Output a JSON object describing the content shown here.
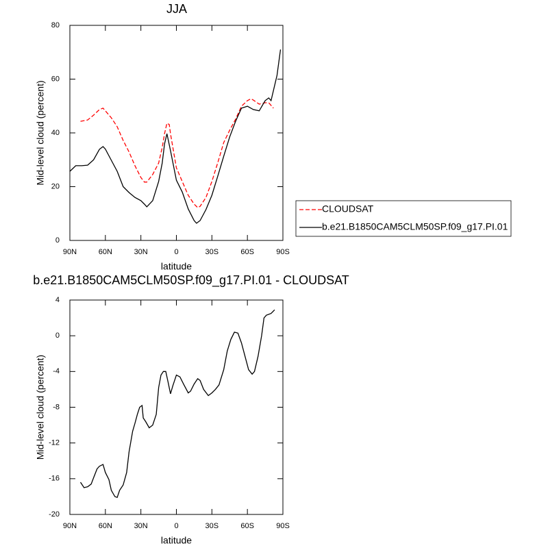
{
  "chart_data": [
    {
      "type": "line",
      "title": "JJA",
      "xlabel": "latitude",
      "ylabel": "Mid-level cloud (percent)",
      "xlim": [
        90,
        -90
      ],
      "xticks": [
        {
          "value": 90,
          "label": "90N"
        },
        {
          "value": 60,
          "label": "60N"
        },
        {
          "value": 30,
          "label": "30N"
        },
        0,
        {
          "value": -30,
          "label": "30S"
        },
        {
          "value": -60,
          "label": "60S"
        },
        {
          "value": -90,
          "label": "90S"
        }
      ],
      "ylim": [
        0,
        80
      ],
      "yticks": [
        0,
        20,
        40,
        60,
        80
      ],
      "legend": "right",
      "series": [
        {
          "name": "CLOUDSAT",
          "color": "#ff0000",
          "linestyle": "dashed",
          "x": [
            81,
            75,
            70,
            65,
            62,
            60,
            55,
            50,
            45,
            40,
            35,
            30,
            27,
            25,
            20,
            15,
            12,
            10,
            8,
            6,
            5,
            0,
            -5,
            -10,
            -15,
            -18,
            -20,
            -25,
            -30,
            -35,
            -40,
            -45,
            -50,
            -55,
            -60,
            -63,
            -65,
            -70,
            -75,
            -78,
            -82
          ],
          "values": [
            44.3,
            44.8,
            46.6,
            48.7,
            49.2,
            48.2,
            45.6,
            42.3,
            37.2,
            32.9,
            27.8,
            23.4,
            21.7,
            21.7,
            24.5,
            28.8,
            34.6,
            39.7,
            43.6,
            43.1,
            39.7,
            27,
            21.9,
            16.8,
            13.5,
            12.2,
            12.7,
            16,
            21.9,
            29,
            36.4,
            41,
            45.1,
            49.9,
            52,
            52.7,
            52.2,
            50.7,
            51.2,
            51.2,
            49.2
          ]
        },
        {
          "name": "b.e21.B1850CAM5CLM50SP.f09_g17.PI.01",
          "color": "#000000",
          "linestyle": "solid",
          "x": [
            90,
            85,
            80,
            75,
            70,
            65,
            62,
            60,
            55,
            50,
            45,
            40,
            35,
            30,
            27,
            25,
            20,
            15,
            12,
            10,
            8,
            5,
            0,
            -5,
            -10,
            -15,
            -17,
            -20,
            -25,
            -30,
            -35,
            -40,
            -45,
            -50,
            -55,
            -60,
            -65,
            -70,
            -75,
            -78,
            -80,
            -85,
            -88
          ],
          "values": [
            25.7,
            27.8,
            27.8,
            28,
            30,
            33.9,
            34.9,
            34,
            29.8,
            25.7,
            20,
            17.8,
            16,
            14.8,
            13.5,
            12.5,
            14.8,
            21.9,
            28.8,
            35.9,
            39.7,
            33.4,
            22.4,
            18,
            11.7,
            7.4,
            6.4,
            7.4,
            11.5,
            16.8,
            24,
            31.3,
            38.5,
            44.3,
            49.2,
            49.9,
            48.7,
            48.2,
            52,
            53,
            52,
            61.4,
            71
          ]
        }
      ]
    },
    {
      "type": "line",
      "title": "b.e21.B1850CAM5CLM50SP.f09_g17.PI.01 - CLOUDSAT",
      "xlabel": "latitude",
      "ylabel": "Mid-level cloud (percent)",
      "xlim": [
        90,
        -90
      ],
      "xticks": [
        {
          "value": 90,
          "label": "90N"
        },
        {
          "value": 60,
          "label": "60N"
        },
        {
          "value": 30,
          "label": "30N"
        },
        0,
        {
          "value": -30,
          "label": "30S"
        },
        {
          "value": -60,
          "label": "60S"
        },
        {
          "value": -90,
          "label": "90S"
        }
      ],
      "ylim": [
        -20,
        4
      ],
      "yticks": [
        -20,
        -16,
        -12,
        -8,
        -4,
        0,
        4
      ],
      "series": [
        {
          "color": "#000000",
          "linestyle": "solid",
          "x": [
            81,
            78,
            75,
            72,
            70,
            67,
            65,
            62,
            60,
            57,
            55,
            52,
            50,
            48,
            45,
            42,
            40,
            37,
            35,
            33,
            31,
            29,
            28,
            26,
            23,
            20,
            17,
            15,
            13,
            11,
            9,
            7,
            5,
            3,
            0,
            -3,
            -6,
            -10,
            -12,
            -15,
            -18,
            -20,
            -23,
            -27,
            -30,
            -33,
            -36,
            -40,
            -43,
            -46,
            -49,
            -52,
            -55,
            -58,
            -61,
            -64,
            -66,
            -69,
            -72,
            -74,
            -76,
            -80,
            -83
          ],
          "values": [
            -16.4,
            -17,
            -16.9,
            -16.6,
            -15.9,
            -14.9,
            -14.6,
            -14.4,
            -15.3,
            -16.1,
            -17.3,
            -18,
            -18.1,
            -17.3,
            -16.7,
            -15.3,
            -13,
            -10.7,
            -9.8,
            -8.8,
            -8,
            -7.8,
            -9.2,
            -9.6,
            -10.3,
            -10,
            -8.8,
            -5.8,
            -4.4,
            -4,
            -4,
            -5.2,
            -6.5,
            -5.6,
            -4.4,
            -4.6,
            -5.4,
            -6.4,
            -6.2,
            -5.4,
            -4.8,
            -5,
            -6,
            -6.7,
            -6.4,
            -6,
            -5.5,
            -3.8,
            -1.7,
            -0.4,
            0.4,
            0.3,
            -0.8,
            -2.3,
            -3.8,
            -4.3,
            -4,
            -2.3,
            0,
            2,
            2.3,
            2.5,
            2.9
          ]
        }
      ]
    }
  ]
}
